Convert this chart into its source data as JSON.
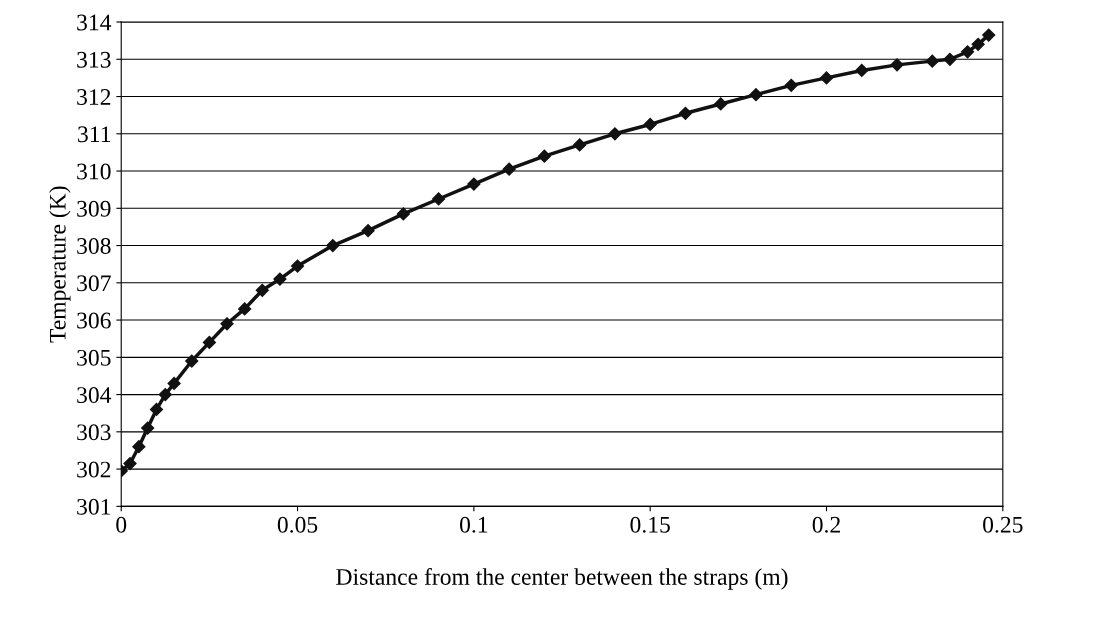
{
  "chart_data": {
    "type": "line",
    "xlabel": "Distance from the center between the straps (m)",
    "ylabel": "Temperature (K)",
    "x": [
      0,
      0.0025,
      0.005,
      0.0075,
      0.01,
      0.0125,
      0.015,
      0.02,
      0.025,
      0.03,
      0.035,
      0.04,
      0.045,
      0.05,
      0.06,
      0.07,
      0.08,
      0.09,
      0.1,
      0.11,
      0.12,
      0.13,
      0.14,
      0.15,
      0.16,
      0.17,
      0.18,
      0.19,
      0.2,
      0.21,
      0.22,
      0.23,
      0.235,
      0.24,
      0.243,
      0.246
    ],
    "series": [
      {
        "color": "#111111",
        "values": [
          301.95,
          302.15,
          302.6,
          303.1,
          303.6,
          304.0,
          304.3,
          304.9,
          305.4,
          305.9,
          306.3,
          306.8,
          307.1,
          307.45,
          308.0,
          308.4,
          308.85,
          309.25,
          309.65,
          310.05,
          310.4,
          310.7,
          311.0,
          311.25,
          311.55,
          311.8,
          312.05,
          312.3,
          312.5,
          312.7,
          312.85,
          312.95,
          313.0,
          313.2,
          313.4,
          313.65
        ]
      }
    ],
    "xlim": [
      0,
      0.25
    ],
    "xticks": [
      0,
      0.05,
      0.1,
      0.15,
      0.2,
      0.25
    ],
    "ylim": [
      301,
      314
    ],
    "yticks": [
      301,
      302,
      303,
      304,
      305,
      306,
      307,
      308,
      309,
      310,
      311,
      312,
      313,
      314
    ],
    "grid": "y",
    "marker": "diamond",
    "line_style": "solid",
    "legend": false
  }
}
